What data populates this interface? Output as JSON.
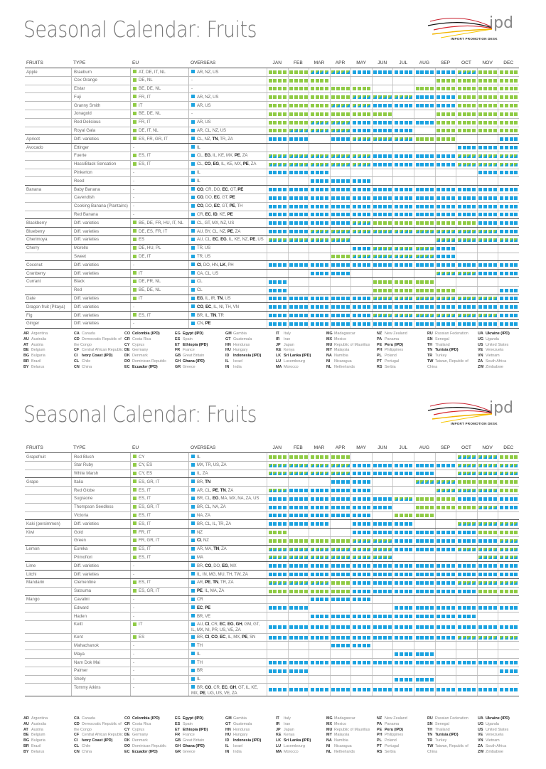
{
  "colors": {
    "eu": "#8fcb45",
    "overseas": "#1ca3e0",
    "mixed": "green/blue"
  },
  "logo": {
    "text": "ipd",
    "subtitle": "IMPORT PROMOTION DESK"
  },
  "headers": {
    "fruits": "FRUITS",
    "type": "TYPE",
    "eu": "EU",
    "overseas": "OVERSEAS",
    "months": [
      "JAN",
      "FEB",
      "MAR",
      "APR",
      "MAY",
      "JUN",
      "JUL",
      "AUG",
      "SEP",
      "OCT",
      "NOV",
      "DEC"
    ]
  },
  "calendar_key": {
    "B": "overseas",
    "G": "EU",
    "M": "EU + overseas",
    "-": "none"
  },
  "pages": [
    {
      "title": "Seasonal Calendar: Fruits",
      "groups": [
        {
          "fruit": "Apple",
          "rows": [
            {
              "type": "Braeburn",
              "eu": "AT, DE, IT, NL",
              "overseas": "AR, NZ, US",
              "cal": "GGMMBBBBBMGG"
            },
            {
              "type": "Cox Orange",
              "eu": "DE, NL",
              "overseas": "-",
              "cal": "GGG-----GGGG"
            },
            {
              "type": "Elstar",
              "eu": "BE, DE, NL",
              "overseas": "-",
              "cal": "GGGGG--GGGGG"
            },
            {
              "type": "Fuji",
              "eu": "FR, IT",
              "overseas": "AR, NZ, US",
              "cal": "GGGGMMMBBGGG"
            },
            {
              "type": "Granny Smith",
              "eu": "IT",
              "overseas": "AR, US",
              "cal": "GGGMMBBBBGGG"
            },
            {
              "type": "Jonagold",
              "eu": "BE, DE, NL",
              "overseas": "-",
              "cal": "GGGGGG--GGGG"
            },
            {
              "type": "Red Delicious",
              "eu": "FR, IT",
              "overseas": "AR, US",
              "cal": "GGMMBBBBGGGG"
            },
            {
              "type": "Royal Gala",
              "eu": "DE, IT, NL",
              "overseas": "AR, CL, NZ, US",
              "cal": "GMMMBBB-GGGG"
            }
          ]
        },
        {
          "fruit": "Apricot",
          "rows": [
            {
              "type": "Diff. varieties",
              "eu": "ES, FR, GR, IT",
              "overseas": "CL, NZ, TN, TR, ZA",
              "cal": "BB-BMMMGG--B"
            }
          ]
        },
        {
          "fruit": "Avocado",
          "rows": [
            {
              "type": "Ettinger",
              "eu": "-",
              "overseas": "IL",
              "cal": "---------BBB"
            },
            {
              "type": "Fuerte",
              "eu": "ES, IT",
              "overseas": "CL, EG, IL, KE, MX, PE, ZA",
              "cal": "MMMMMBBBBMMM"
            },
            {
              "type": "Hass/Black Sensation",
              "eu": "ES, IT",
              "overseas": "CL, CO, EG, IL, KE, MX, PE, ZA",
              "cal": "MMMMMBBBBMMM"
            },
            {
              "type": "Pinkerton",
              "eu": "-",
              "overseas": "IL",
              "cal": "BBB-------BB"
            },
            {
              "type": "Reed",
              "eu": "-",
              "overseas": "IL",
              "cal": "--BBB-------"
            }
          ]
        },
        {
          "fruit": "Banana",
          "rows": [
            {
              "type": "Baby Banana",
              "eu": "-",
              "overseas": "CO, CR, DO, EC, GT, PE",
              "cal": "BBBBBBBBBBBB"
            },
            {
              "type": "Cavendish",
              "eu": "-",
              "overseas": "CO, DO, EC, GT, PE",
              "cal": "BBBBBBBBBBBB"
            },
            {
              "type": "Cooking Banana (Plantains)",
              "eu": "-",
              "overseas": "CO, DO, EC, GT, PE, TH",
              "cal": "BBBBBBBBBBBB"
            },
            {
              "type": "Red Banana",
              "eu": "-",
              "overseas": "CR, EC, ID, KE, PE",
              "cal": "BBBBBBBBBBBB"
            }
          ]
        },
        {
          "fruit": "Blackberry",
          "rows": [
            {
              "type": "Diff. varieties",
              "eu": "BE, DE, FR, HU, IT, NL",
              "overseas": "CL, GT, MX, NZ, US",
              "cal": "BBBBMGGGGGBB"
            }
          ]
        },
        {
          "fruit": "Blueberry",
          "rows": [
            {
              "type": "Diff. varieties",
              "eu": "DE, ES, FR, IT",
              "overseas": "AU, BY, CL, NZ, PE, ZA",
              "cal": "BBMMMMMMMMMB"
            }
          ]
        },
        {
          "fruit": "Cherimoya",
          "rows": [
            {
              "type": "Diff. varieties",
              "eu": "ES",
              "overseas": "AU, CL, EC, EG, IL, KE, NZ, PE, US",
              "cal": "MMMM----MMMM"
            }
          ]
        },
        {
          "fruit": "Cherry",
          "rows": [
            {
              "type": "Morello",
              "eu": "DE, HU, PL",
              "overseas": "TR, US",
              "cal": "----BMMMB---"
            },
            {
              "type": "Sweet",
              "eu": "DE, IT",
              "overseas": "TR, US",
              "cal": "---GMMMMB---"
            }
          ]
        },
        {
          "fruit": "Coconut",
          "rows": [
            {
              "type": "Diff. varieties",
              "eu": "-",
              "overseas": "CI, DO, HN, LK, PH",
              "cal": "BBBBBBBBBBBB"
            }
          ]
        },
        {
          "fruit": "Cranberry",
          "rows": [
            {
              "type": "Diff. varieties",
              "eu": "IT",
              "overseas": "CA, CL, US",
              "cal": "--BB----MMBB"
            }
          ]
        },
        {
          "fruit": "Currant",
          "rows": [
            {
              "type": "Black",
              "eu": "DE, FR, NL",
              "overseas": "CL",
              "cal": "B----GGG----"
            },
            {
              "type": "Red",
              "eu": "BE, DE, NL",
              "overseas": "CL",
              "cal": "B----GGGG--B"
            }
          ]
        },
        {
          "fruit": "Date",
          "rows": [
            {
              "type": "Diff. varieties",
              "eu": "IT",
              "overseas": "EG, IL, IR, TN, US",
              "cal": "BBBBBMMMMMMB"
            }
          ]
        },
        {
          "fruit": "Dragon fruit (Pitaya)",
          "rows": [
            {
              "type": "Diff. varieties",
              "eu": "-",
              "overseas": "CO, EC, IL, NI, TH, VN",
              "cal": "BBBBBBBBBBBB"
            }
          ]
        },
        {
          "fruit": "Fig",
          "rows": [
            {
              "type": "Diff. varieties",
              "eu": "ES, IT",
              "overseas": "BR, IL, TN, TR",
              "cal": "BBBBBMMMMMMB"
            }
          ]
        },
        {
          "fruit": "Ginger",
          "rows": [
            {
              "type": "Diff. varieties",
              "eu": "-",
              "overseas": "CN, PE",
              "cal": "BBBBBBBBBBBB"
            }
          ]
        }
      ]
    },
    {
      "title": "Seasonal Calendar: Fruits",
      "groups": [
        {
          "fruit": "Grapefruit",
          "rows": [
            {
              "type": "Red Blush",
              "eu": "CY",
              "overseas": "IL",
              "cal": "GGGG-----MMG"
            },
            {
              "type": "Star Ruby",
              "eu": "CY, ES",
              "overseas": "MX, TR, US, ZA",
              "cal": "MMMMBBBBBMMM"
            },
            {
              "type": "White Marsh",
              "eu": "CY, ES",
              "overseas": "IL, ZA",
              "cal": "MMMMBBBB-MMM"
            }
          ]
        },
        {
          "fruit": "Grape",
          "rows": [
            {
              "type": "Italia",
              "eu": "ES, GR, IT",
              "overseas": "BR, TN",
              "cal": "---BB--MMGGG"
            },
            {
              "type": "Red Globe",
              "eu": "ES, IT",
              "overseas": "AR, CL, PE, TN, ZA",
              "cal": "MBBBB---MMMG"
            },
            {
              "type": "Sugraone",
              "eu": "ES, IT",
              "overseas": "BR, CL, EG, MA, MX, NA, ZA, US",
              "cal": "BBBBBBMGGBBB"
            },
            {
              "type": "Thompson Seedless",
              "eu": "ES, GR, IT",
              "overseas": "BR, CL, NA, ZA",
              "cal": "BBBBBB-GGGMB"
            },
            {
              "type": "Victoria",
              "eu": "ES, IT",
              "overseas": "NA, ZA",
              "cal": "BBBBB-GG----"
            }
          ]
        },
        {
          "fruit": "Kaki (persimmon)",
          "rows": [
            {
              "type": "Diff. varieties",
              "eu": "ES, IT",
              "overseas": "BR, CL, IL, TR, ZA",
              "cal": "BBB-BBB--MMM"
            }
          ]
        },
        {
          "fruit": "Kiwi",
          "rows": [
            {
              "type": "Gold",
              "eu": "FR, IT",
              "overseas": "NZ",
              "cal": "G---BBBBBBGG"
            },
            {
              "type": "Green",
              "eu": "FR, GR, IT",
              "overseas": "CI, NZ",
              "cal": "GGGGMMBBBBBM"
            }
          ]
        },
        {
          "fruit": "Lemon",
          "rows": [
            {
              "type": "Eureka",
              "eu": "ES, IT",
              "overseas": "AR, MA, TN, ZA",
              "cal": "MMMMMMBBBMMM"
            },
            {
              "type": "Primofiori",
              "eu": "ES, IT",
              "overseas": "MA",
              "cal": "MMMMMM----MM"
            }
          ]
        },
        {
          "fruit": "Lime",
          "rows": [
            {
              "type": "Diff. varieties",
              "eu": "-",
              "overseas": "BR, CO, DO, EG, MX",
              "cal": "BBBBBBBBBBBB"
            }
          ]
        },
        {
          "fruit": "Litchi",
          "rows": [
            {
              "type": "Diff. varieties",
              "eu": "-",
              "overseas": "IL, IN, MG, MU, TH, TW, ZA",
              "cal": "BBBBBBBBBBBB"
            }
          ]
        },
        {
          "fruit": "Mandarin",
          "rows": [
            {
              "type": "Clementine",
              "eu": "ES, IT",
              "overseas": "AR, PE, TN, TR, ZA",
              "cal": "MMMGBBBBBMMM"
            },
            {
              "type": "Satsuma",
              "eu": "ES, GR, IT",
              "overseas": "PE, IL, MA, ZA",
              "cal": "GGGGBBBBBBGG"
            }
          ]
        },
        {
          "fruit": "Mango",
          "rows": [
            {
              "type": "Cavalini",
              "eu": "-",
              "overseas": "CR",
              "cal": "--BBB-------"
            },
            {
              "type": "Edward",
              "eu": "-",
              "overseas": "EC, PE",
              "cal": "BB----BBBBBB"
            },
            {
              "type": "Haden",
              "eu": "-",
              "overseas": "BR, VE",
              "cal": "--BBBBBBBB--"
            },
            {
              "type": "Keitt",
              "eu": "IT",
              "overseas": "AU, CI, CR, EC, EG, GH, GM, GT, IL, MX, NI, PR, US, VE, ZA",
              "cal": "BBBBBBBBBBBB"
            },
            {
              "type": "Kent",
              "eu": "ES",
              "overseas": "BR, CI, CO, EC, IL, MX, PE, SN",
              "cal": "BBBBBBBBBMMM"
            },
            {
              "type": "Mahachanok",
              "eu": "-",
              "overseas": "TH",
              "cal": "---BB-------"
            },
            {
              "type": "Maya",
              "eu": "-",
              "overseas": "IL",
              "cal": "------BB----"
            },
            {
              "type": "Nam Dok Mai",
              "eu": "-",
              "overseas": "TH",
              "cal": "BBBBBBBBBBBB"
            },
            {
              "type": "Palmer",
              "eu": "-",
              "overseas": "BR",
              "cal": "BB---------B"
            },
            {
              "type": "Shelly",
              "eu": "-",
              "overseas": "IL",
              "cal": "------BB----"
            },
            {
              "type": "Tommy Atkins",
              "eu": "-",
              "overseas": "BR, CO, CR, EC, GH, GT, IL, KE, MX, PE, UG, US, VE, ZA",
              "cal": "BBBBBBBBBBBB"
            }
          ]
        }
      ]
    }
  ],
  "legend": [
    [
      [
        "AR",
        "Argentina"
      ],
      [
        "AU",
        "Australia"
      ],
      [
        "AT",
        "Austria"
      ],
      [
        "BE",
        "Belgium"
      ],
      [
        "BG",
        "Bulgaria"
      ],
      [
        "BR",
        "Brazil"
      ],
      [
        "BY",
        "Belarus"
      ]
    ],
    [
      [
        "CA",
        "Canada"
      ],
      [
        "CD",
        "Democratic Republic of the Congo"
      ],
      [
        "CF",
        "Central African Republic"
      ],
      [
        "CI",
        "Ivory Coast (IPD)"
      ],
      [
        "CL",
        "Chile"
      ],
      [
        "CN",
        "China"
      ]
    ],
    [
      [
        "CO",
        "Colombia (IPD)"
      ],
      [
        "CR",
        "Costa Rica"
      ],
      [
        "CY",
        "Cyprus"
      ],
      [
        "DE",
        "Germany"
      ],
      [
        "DK",
        "Denmark"
      ],
      [
        "DO",
        "Dominican Republic"
      ],
      [
        "EC",
        "Ecuador (IPD)"
      ]
    ],
    [
      [
        "EG",
        "Egypt (IPD)"
      ],
      [
        "ES",
        "Spain"
      ],
      [
        "ET",
        "Ethiopia (IPD)"
      ],
      [
        "FR",
        "France"
      ],
      [
        "GB",
        "Great Britain"
      ],
      [
        "GH",
        "Ghana (IPD)"
      ],
      [
        "GR",
        "Greece"
      ]
    ],
    [
      [
        "GM",
        "Gambia"
      ],
      [
        "GT",
        "Guatemala"
      ],
      [
        "HN",
        "Honduras"
      ],
      [
        "HU",
        "Hungary"
      ],
      [
        "ID",
        "Indonesia (IPD)"
      ],
      [
        "IL",
        "Israel"
      ],
      [
        "IN",
        "India"
      ]
    ],
    [
      [
        "IT",
        "Italy"
      ],
      [
        "IR",
        "Iran"
      ],
      [
        "JP",
        "Japan"
      ],
      [
        "KE",
        "Kenya"
      ],
      [
        "LK",
        "Sri Lanka (IPD)"
      ],
      [
        "LU",
        "Luxembourg"
      ],
      [
        "MA",
        "Morocco"
      ]
    ],
    [
      [
        "MG",
        "Madagascar"
      ],
      [
        "MX",
        "Mexico"
      ],
      [
        "MU",
        "Republic of Mauritius"
      ],
      [
        "MY",
        "Malaysia"
      ],
      [
        "NA",
        "Namibia"
      ],
      [
        "NI",
        "Nicaragua"
      ],
      [
        "NL",
        "Netherlands"
      ]
    ],
    [
      [
        "NZ",
        "New Zealand"
      ],
      [
        "PA",
        "Panama"
      ],
      [
        "PE",
        "Peru (IPD)"
      ],
      [
        "PH",
        "Philippines"
      ],
      [
        "PL",
        "Poland"
      ],
      [
        "PT",
        "Portugal"
      ],
      [
        "RS",
        "Serbia"
      ]
    ],
    [
      [
        "RU",
        "Russian Federation"
      ],
      [
        "SN",
        "Senegal"
      ],
      [
        "TH",
        "Thailand"
      ],
      [
        "TN",
        "Tunisia (IPD)"
      ],
      [
        "TR",
        "Turkey"
      ],
      [
        "TW",
        "Taiwan, Republic of China"
      ]
    ],
    [
      [
        "UA",
        "Ukraine (IPD)"
      ],
      [
        "UG",
        "Uganda"
      ],
      [
        "US",
        "United States"
      ],
      [
        "VE",
        "Venezuela"
      ],
      [
        "VN",
        "Vietnam"
      ],
      [
        "ZA",
        "South Africa"
      ],
      [
        "ZW",
        "Zimbabwe"
      ]
    ]
  ]
}
